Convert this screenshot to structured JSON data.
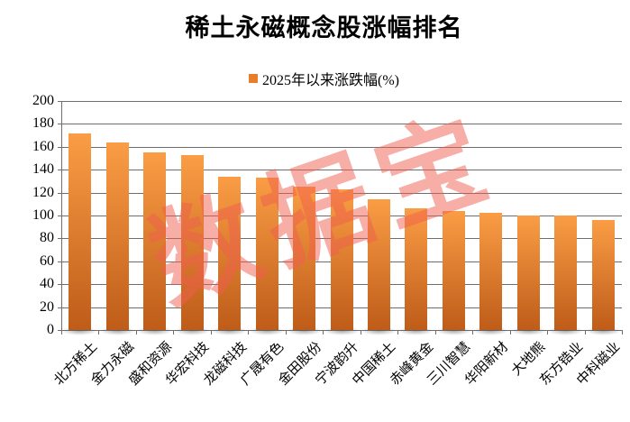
{
  "title": "稀土永磁概念股涨幅排名",
  "legend": {
    "swatch_color": "#E87E2B",
    "label": "2025年以来涨跌幅(%)"
  },
  "watermark_text": "数据宝",
  "colors": {
    "bar_top": "#FA9D45",
    "bar_bottom": "#BE5C19",
    "watermark": "rgba(240,93,78,0.5)",
    "gridline": "#6E6E6E",
    "text": "#000000"
  },
  "chart_data": {
    "type": "bar",
    "title": "稀土永磁概念股涨幅排名",
    "categories": [
      "北方稀土",
      "金力永磁",
      "盛和资源",
      "华宏科技",
      "龙磁科技",
      "广晟有色",
      "金田股份",
      "宁波韵升",
      "中国稀土",
      "赤峰黄金",
      "三川智慧",
      "华阳新材",
      "大地熊",
      "东方锆业",
      "中科磁业"
    ],
    "series": [
      {
        "name": "2025年以来涨跌幅(%)",
        "values": [
          172,
          164,
          155,
          153,
          134,
          133,
          125,
          123,
          114,
          106,
          104,
          102,
          100,
          100,
          96
        ]
      }
    ],
    "xlabel": "",
    "ylabel": "",
    "ylim": [
      0,
      200
    ],
    "ytick_step": 20,
    "grid": true,
    "legend_position": "top",
    "watermark": "数据宝"
  }
}
